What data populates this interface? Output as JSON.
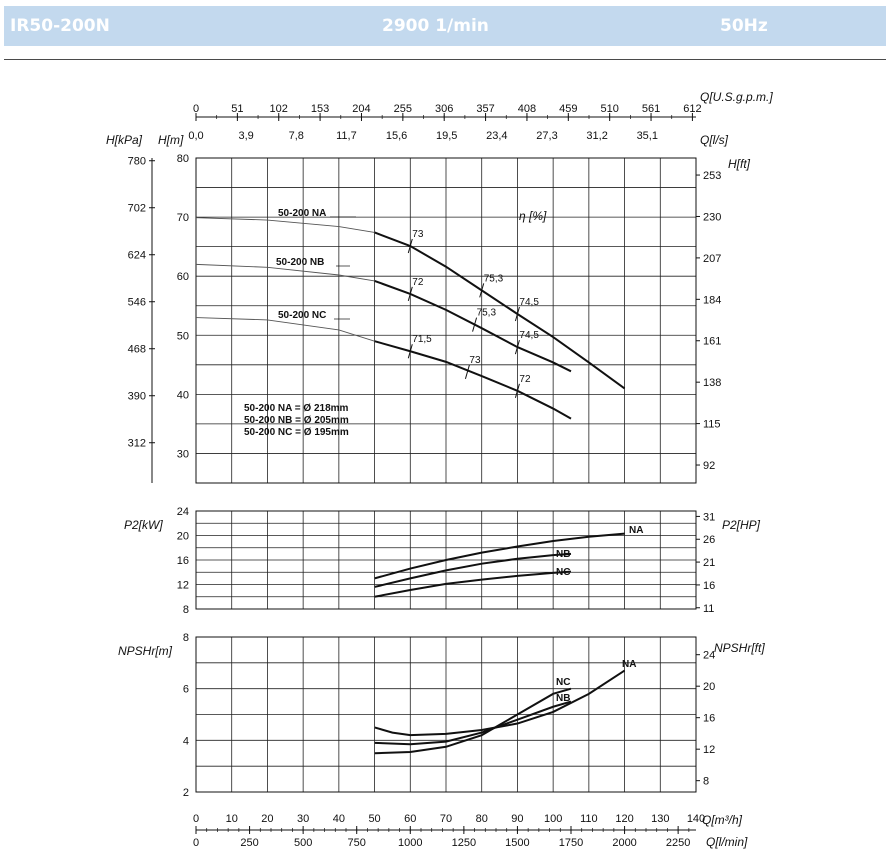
{
  "header": {
    "model": "IR50-200N",
    "speed": "2900 1/min",
    "frequency": "50Hz"
  },
  "chart_data": {
    "type": "line",
    "x_axis": {
      "label_m3h": "Q[m³/h]",
      "ticks_m3h": [
        "0",
        "10",
        "20",
        "30",
        "40",
        "50",
        "60",
        "70",
        "80",
        "90",
        "100",
        "110",
        "120",
        "130",
        "140"
      ],
      "label_lmin": "Q[l/min]",
      "ticks_lmin": [
        "0",
        "250",
        "500",
        "750",
        "1000",
        "1250",
        "1500",
        "1750",
        "2000",
        "2250"
      ],
      "label_usgpm": "Q[U.S.g.p.m.]",
      "ticks_usgpm": [
        "0",
        "51",
        "102",
        "153",
        "204",
        "255",
        "306",
        "357",
        "408",
        "459",
        "510",
        "561",
        "612"
      ],
      "label_ls": "Q[l/s]",
      "ticks_ls": [
        "0,0",
        "3,9",
        "7,8",
        "11,7",
        "15,6",
        "19,5",
        "23,4",
        "27,3",
        "31,2",
        "35,1"
      ],
      "range": [
        0,
        140
      ]
    },
    "head_panel": {
      "ylabel": "H[m]",
      "ylabel_kpa": "H[kPa]",
      "ylabel_ft": "H[ft]",
      "eta_label": "η [%]",
      "ylim": [
        25,
        80
      ],
      "ticks_m": [
        "30",
        "40",
        "50",
        "60",
        "70",
        "80"
      ],
      "ticks_kpa": [
        "312",
        "390",
        "468",
        "546",
        "624",
        "702",
        "780"
      ],
      "ticks_ft": [
        "92",
        "115",
        "138",
        "161",
        "184",
        "207",
        "230",
        "253"
      ],
      "series": [
        {
          "name": "50-200 NA",
          "x": [
            0,
            20,
            40,
            50,
            60,
            70,
            80,
            90,
            100,
            110,
            120
          ],
          "y": [
            69.9,
            69.5,
            68.4,
            67.4,
            65.1,
            61.6,
            57.6,
            53.6,
            49.7,
            45.4,
            41.0
          ]
        },
        {
          "name": "50-200 NB",
          "x": [
            0,
            20,
            40,
            50,
            60,
            70,
            80,
            90,
            100,
            105
          ],
          "y": [
            62.0,
            61.5,
            60.2,
            59.2,
            57.0,
            54.3,
            51.2,
            48.0,
            45.4,
            43.9
          ]
        },
        {
          "name": "50-200 NC",
          "x": [
            0,
            20,
            40,
            50,
            60,
            70,
            80,
            90,
            100,
            105
          ],
          "y": [
            53.0,
            52.6,
            50.9,
            49.0,
            47.3,
            45.5,
            43.1,
            40.6,
            37.6,
            35.9
          ]
        }
      ],
      "efficiency_marks": [
        {
          "label": "73",
          "x": 60,
          "y": 65.1
        },
        {
          "label": "75,3",
          "x": 80,
          "y": 57.6
        },
        {
          "label": "74,5",
          "x": 90,
          "y": 53.6
        },
        {
          "label": "72",
          "x": 60,
          "y": 57.0
        },
        {
          "label": "75,3",
          "x": 78,
          "y": 51.8
        },
        {
          "label": "74,5",
          "x": 90,
          "y": 48.0
        },
        {
          "label": "71,5",
          "x": 60,
          "y": 47.3
        },
        {
          "label": "73",
          "x": 76,
          "y": 43.8
        },
        {
          "label": "72",
          "x": 90,
          "y": 40.6
        }
      ],
      "diameters": [
        "50-200 NA = Ø 218mm",
        "50-200 NB = Ø 205mm",
        "50-200 NC = Ø 195mm"
      ]
    },
    "power_panel": {
      "ylabel": "P2[kW]",
      "ylabel_hp": "P2[HP]",
      "ylim": [
        8,
        24
      ],
      "ticks_kw": [
        "8",
        "12",
        "16",
        "20",
        "24"
      ],
      "ticks_hp": [
        "11",
        "16",
        "21",
        "26",
        "31"
      ],
      "series": [
        {
          "name": "NA",
          "x": [
            50,
            60,
            70,
            80,
            90,
            100,
            110,
            120
          ],
          "y": [
            13.0,
            14.6,
            16.0,
            17.2,
            18.2,
            19.1,
            19.8,
            20.3
          ]
        },
        {
          "name": "NB",
          "x": [
            50,
            60,
            70,
            80,
            90,
            100,
            105
          ],
          "y": [
            11.6,
            13.0,
            14.3,
            15.4,
            16.2,
            16.8,
            17.0
          ]
        },
        {
          "name": "NC",
          "x": [
            50,
            60,
            70,
            80,
            90,
            100,
            105
          ],
          "y": [
            10.0,
            11.1,
            12.1,
            12.8,
            13.4,
            13.9,
            14.1
          ]
        }
      ]
    },
    "npsh_panel": {
      "ylabel": "NPSHr[m]",
      "ylabel_ft": "NPSHr[ft]",
      "ylim": [
        2,
        8
      ],
      "ticks_m": [
        "2",
        "4",
        "6",
        "8"
      ],
      "ticks_ft": [
        "8",
        "12",
        "16",
        "20",
        "24"
      ],
      "series": [
        {
          "name": "NA",
          "x": [
            50,
            55,
            60,
            70,
            80,
            90,
            100,
            110,
            120
          ],
          "y": [
            4.5,
            4.3,
            4.2,
            4.25,
            4.4,
            4.65,
            5.1,
            5.8,
            6.7
          ]
        },
        {
          "name": "NB",
          "x": [
            50,
            60,
            70,
            80,
            90,
            100,
            105
          ],
          "y": [
            3.9,
            3.85,
            3.95,
            4.3,
            4.8,
            5.3,
            5.5
          ]
        },
        {
          "name": "NC",
          "x": [
            50,
            60,
            70,
            80,
            90,
            100,
            105
          ],
          "y": [
            3.5,
            3.55,
            3.75,
            4.2,
            5.0,
            5.8,
            6.0
          ]
        }
      ]
    }
  }
}
